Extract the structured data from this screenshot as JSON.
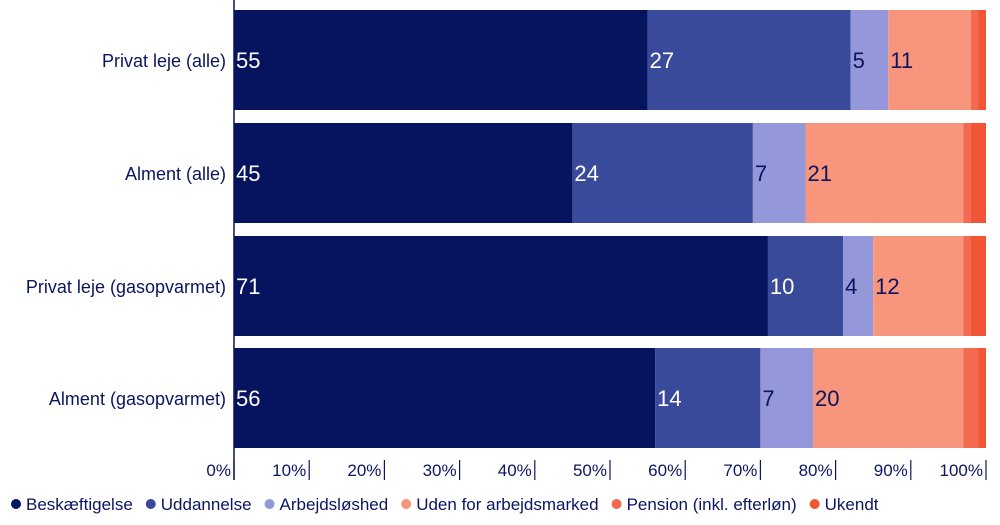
{
  "chart_data": {
    "type": "bar",
    "orientation": "horizontal",
    "stacked": true,
    "categories": [
      "Privat leje (alle)",
      "Alment (alle)",
      "Privat leje (gasopvarmet)",
      "Alment (gasopvarmet)"
    ],
    "series": [
      {
        "name": "Beskæftigelse",
        "color": "#06135e",
        "label_color": "#ffffff",
        "values": [
          55,
          45,
          71,
          56
        ],
        "labels": [
          "55",
          "45",
          "71",
          "56"
        ]
      },
      {
        "name": "Uddannelse",
        "color": "#3a4a9a",
        "label_color": "#ffffff",
        "values": [
          27,
          24,
          10,
          14
        ],
        "labels": [
          "27",
          "24",
          "10",
          "14"
        ]
      },
      {
        "name": "Arbejdsløshed",
        "color": "#9497da",
        "label_color": "#0b1560",
        "values": [
          5,
          7,
          4,
          7
        ],
        "labels": [
          "5",
          "7",
          "4",
          "7"
        ]
      },
      {
        "name": "Uden for arbejdsmarked",
        "color": "#f8957d",
        "label_color": "#0b1560",
        "values": [
          11,
          21,
          12,
          20
        ],
        "labels": [
          "11",
          "21",
          "12",
          "20"
        ]
      },
      {
        "name": "Pension (inkl. efterløn)",
        "color": "#f36a50",
        "label_color": "#0b1560",
        "values": [
          1,
          1,
          1,
          2
        ],
        "labels": [
          "",
          "",
          "",
          ""
        ]
      },
      {
        "name": "Ukendt",
        "color": "#f25535",
        "label_color": "#0b1560",
        "values": [
          1,
          2,
          2,
          1
        ],
        "labels": [
          "",
          "",
          "",
          ""
        ]
      }
    ],
    "x_ticks": [
      "0%",
      "10%",
      "20%",
      "30%",
      "40%",
      "50%",
      "60%",
      "70%",
      "80%",
      "90%",
      "100%"
    ],
    "xlim": [
      0,
      100
    ],
    "grid": false,
    "legend_position": "bottom",
    "title": "",
    "xlabel": "",
    "ylabel": ""
  }
}
